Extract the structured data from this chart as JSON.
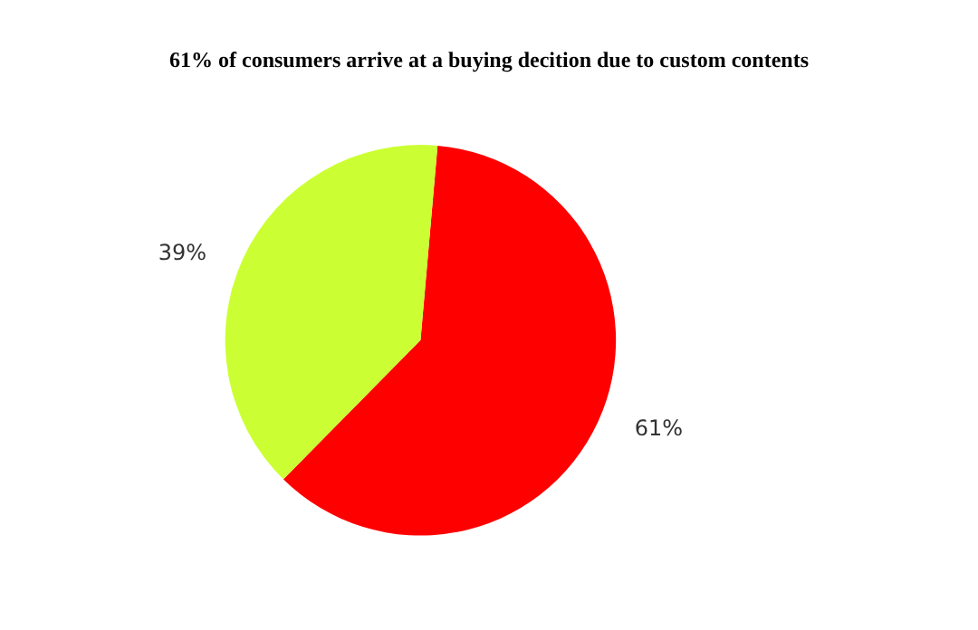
{
  "chart_data": {
    "type": "pie",
    "title": "61% of consumers arrive at a buying decition due to custom contents",
    "categories": [
      null,
      null
    ],
    "values": [
      61,
      39
    ],
    "colors": [
      "#ff0000",
      "#ccff33"
    ],
    "value_labels": [
      "61%",
      "39%"
    ]
  }
}
